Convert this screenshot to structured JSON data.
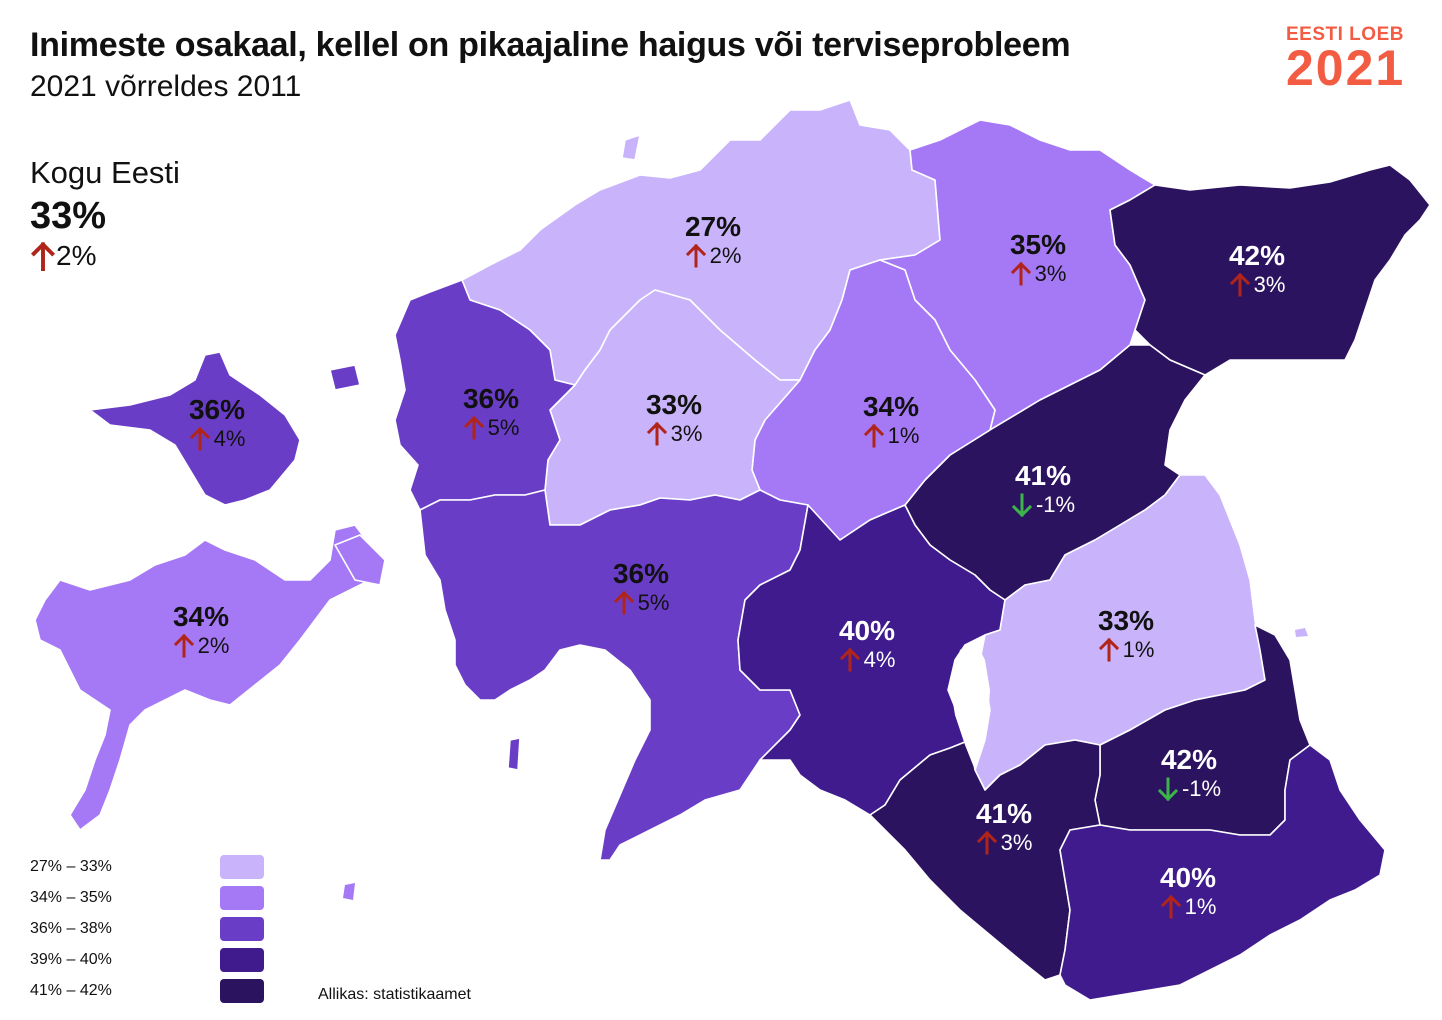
{
  "title": "Inimeste osakaal, kellel on pikaajaline haigus või terviseprobleem",
  "subtitle": "2021 võrreldes 2011",
  "logo": {
    "top": "EESTI LOEB",
    "year": "2021"
  },
  "total": {
    "label": "Kogu Eesti",
    "value": "33%",
    "change": "2%",
    "direction": "up"
  },
  "colors": {
    "c1": "#c9b3fb",
    "c2": "#a579f6",
    "c3": "#6a3dc7",
    "c4": "#3f1b8d",
    "c5": "#2c1360",
    "up": "#b0241a",
    "down": "#3bb54a"
  },
  "regions": [
    {
      "id": "harju",
      "value": "27%",
      "change": "2%",
      "direction": "up",
      "bin": "c1"
    },
    {
      "id": "laane-viru",
      "value": "35%",
      "change": "3%",
      "direction": "up",
      "bin": "c2"
    },
    {
      "id": "ida-viru",
      "value": "42%",
      "change": "3%",
      "direction": "up",
      "bin": "c5"
    },
    {
      "id": "hiiu",
      "value": "36%",
      "change": "4%",
      "direction": "up",
      "bin": "c3"
    },
    {
      "id": "laane",
      "value": "36%",
      "change": "5%",
      "direction": "up",
      "bin": "c3"
    },
    {
      "id": "rapla",
      "value": "33%",
      "change": "3%",
      "direction": "up",
      "bin": "c1"
    },
    {
      "id": "jarva",
      "value": "34%",
      "change": "1%",
      "direction": "up",
      "bin": "c2"
    },
    {
      "id": "jogeva",
      "value": "41%",
      "change": "-1%",
      "direction": "down",
      "bin": "c5"
    },
    {
      "id": "saare",
      "value": "34%",
      "change": "2%",
      "direction": "up",
      "bin": "c2"
    },
    {
      "id": "parnu",
      "value": "36%",
      "change": "5%",
      "direction": "up",
      "bin": "c3"
    },
    {
      "id": "viljandi",
      "value": "40%",
      "change": "4%",
      "direction": "up",
      "bin": "c4"
    },
    {
      "id": "tartu",
      "value": "33%",
      "change": "1%",
      "direction": "up",
      "bin": "c1"
    },
    {
      "id": "polva",
      "value": "42%",
      "change": "-1%",
      "direction": "down",
      "bin": "c5"
    },
    {
      "id": "valga",
      "value": "41%",
      "change": "3%",
      "direction": "up",
      "bin": "c5"
    },
    {
      "id": "voru",
      "value": "40%",
      "change": "1%",
      "direction": "up",
      "bin": "c4"
    }
  ],
  "legend": [
    {
      "label": "27% – 33%",
      "bin": "c1"
    },
    {
      "label": "34% – 35%",
      "bin": "c2"
    },
    {
      "label": "36% – 38%",
      "bin": "c3"
    },
    {
      "label": "39% – 40%",
      "bin": "c4"
    },
    {
      "label": "41% – 42%",
      "bin": "c5"
    }
  ],
  "source": "Allikas: statistikaamet"
}
